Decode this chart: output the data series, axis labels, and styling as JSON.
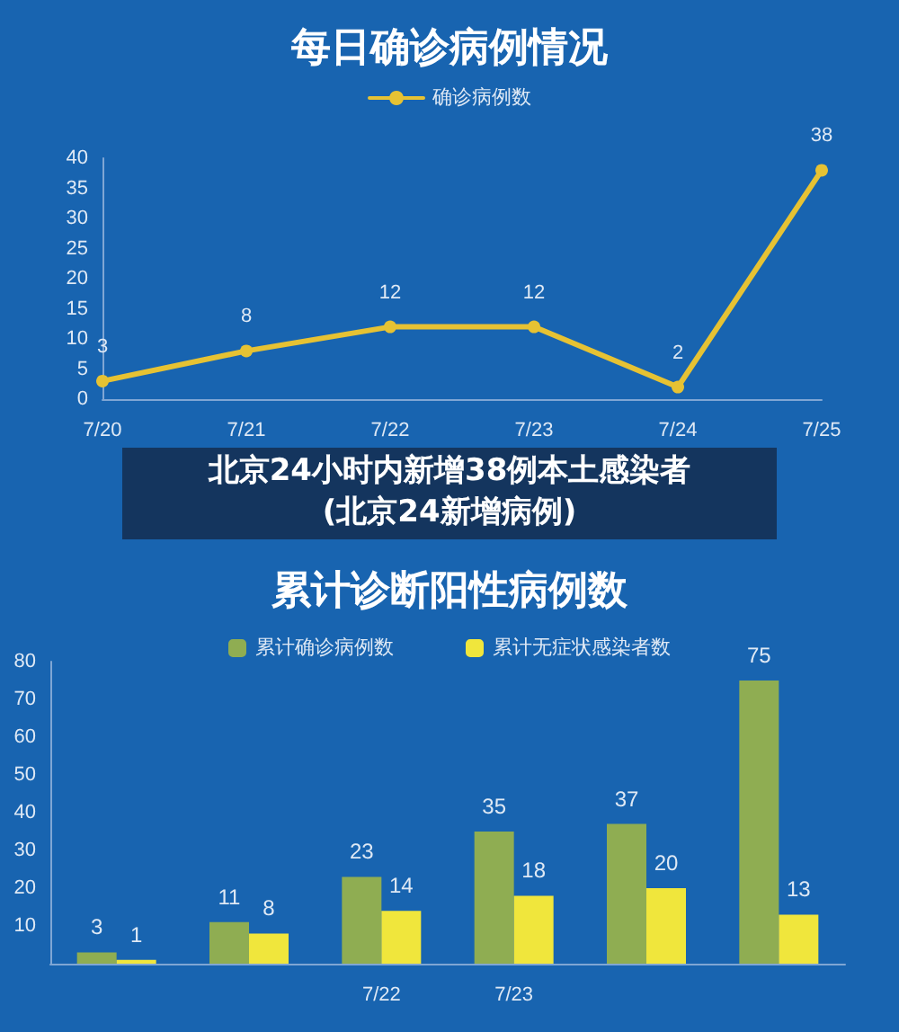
{
  "chart_data": [
    {
      "type": "line",
      "title": "每日确诊病例情况",
      "categories": [
        "7/20",
        "7/21",
        "7/22",
        "7/23",
        "7/24",
        "7/25"
      ],
      "series": [
        {
          "name": "确诊病例数",
          "color": "#e6c233",
          "values": [
            3,
            8,
            12,
            12,
            2,
            38
          ]
        }
      ],
      "ylim": [
        0,
        40
      ],
      "yticks": [
        0,
        5,
        10,
        15,
        20,
        25,
        30,
        35,
        40
      ],
      "data_labels": true,
      "grid": false,
      "legend": "top",
      "marker": "circle",
      "line_style": "solid",
      "annotations": [
        "北京24小时内新增38例本土感染者",
        "(北京24新增病例)"
      ]
    },
    {
      "type": "bar",
      "title": "累计诊断阳性病例数",
      "categories": [
        null,
        null,
        "7/22",
        "7/23",
        null,
        null
      ],
      "series": [
        {
          "name": "累计确诊病例数",
          "color": "#8fad52",
          "values": [
            3,
            11,
            23,
            35,
            37,
            75
          ]
        },
        {
          "name": "累计无症状感染者数",
          "color": "#f0e63c",
          "values": [
            1,
            8,
            14,
            18,
            20,
            13
          ]
        }
      ],
      "ylim": [
        0,
        80
      ],
      "yticks": [
        {
          "value": 0,
          "label": null
        },
        10,
        20,
        30,
        40,
        50,
        60,
        70,
        80
      ],
      "data_labels": true,
      "grid": false,
      "legend": "top"
    }
  ]
}
